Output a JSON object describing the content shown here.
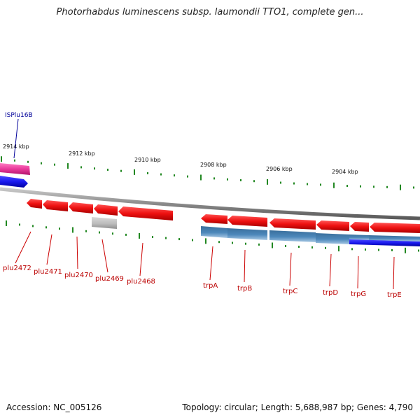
{
  "title": "Photorhabdus luminescens subsp. laumondii TTO1, complete gen...",
  "footer": {
    "accession": "Accession: NC_005126",
    "summary": "Topology: circular; Length: 5,688,987 bp; Genes: 4,790"
  },
  "colors": {
    "gene_forward": "#ee1111",
    "gene_reverse": "#3f7aad",
    "mobile_element": "#e83a9a",
    "blue_feature": "#1a1aee",
    "pseudo_gene": "#bdbdbd",
    "backbone": "#8a8a8a",
    "ticks": "#228822",
    "gene_labels": "#bb0000",
    "feature_labels": "#000099"
  },
  "ruler": [
    "2914 kbp",
    "2912 kbp",
    "2910 kbp",
    "2908 kbp",
    "2906 kbp",
    "2904 kbp"
  ],
  "feature_label": "ISPlu16B",
  "gene_labels": [
    "plu2472",
    "plu2471",
    "plu2470",
    "plu2469",
    "plu2468",
    "trpA",
    "trpB",
    "trpC",
    "trpD",
    "trpG",
    "trpE"
  ]
}
